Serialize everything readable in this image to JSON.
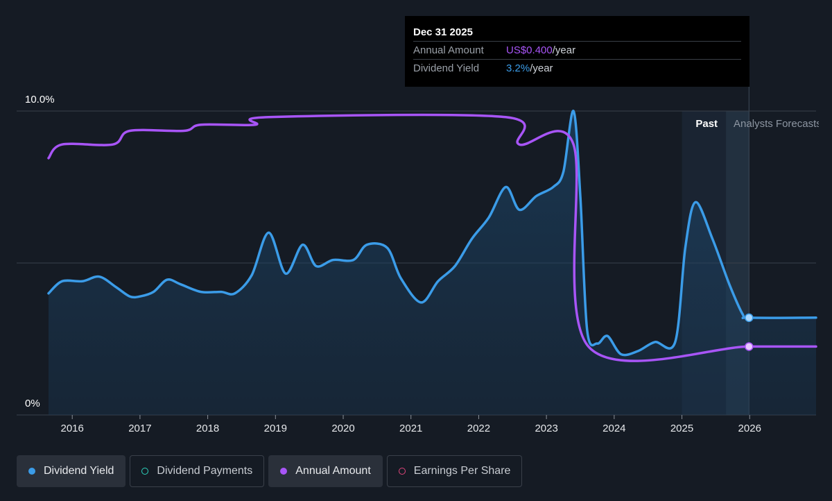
{
  "colors": {
    "background": "#151b24",
    "yield": "#3b9ce8",
    "annual": "#a855f7",
    "payments": "#2dd4bf",
    "eps": "#e0457b"
  },
  "tooltip": {
    "date": "Dec 31 2025",
    "rows": [
      {
        "key": "Annual Amount",
        "value_colored": "US$0.400",
        "suffix": "/year"
      },
      {
        "key": "Dividend Yield",
        "value_colored": "3.2%",
        "suffix": "/year"
      }
    ]
  },
  "regions": {
    "past_label": "Past",
    "forecast_label": "Analysts Forecasts"
  },
  "legend": [
    {
      "label": "Dividend Yield",
      "active": true,
      "icon": "filled-dot-icon",
      "color": "#3b9ce8"
    },
    {
      "label": "Dividend Payments",
      "active": false,
      "icon": "hollow-dot-icon",
      "color": "#2dd4bf"
    },
    {
      "label": "Annual Amount",
      "active": true,
      "icon": "filled-dot-icon",
      "color": "#a855f7"
    },
    {
      "label": "Earnings Per Share",
      "active": false,
      "icon": "hollow-dot-icon",
      "color": "#e0457b"
    }
  ],
  "chart_data": {
    "type": "line",
    "y_tick_labels": [
      "10.0%",
      "0%"
    ],
    "ylim": [
      0,
      10
    ],
    "xlim": [
      2015.65,
      2026.98
    ],
    "x_tick_labels": [
      "2016",
      "2017",
      "2018",
      "2019",
      "2020",
      "2021",
      "2022",
      "2023",
      "2024",
      "2025",
      "2026"
    ],
    "x_ticks": [
      2016,
      2017,
      2018,
      2019,
      2020,
      2021,
      2022,
      2023,
      2024,
      2025,
      2026
    ],
    "past_start": 2025.0,
    "forecast_start": 2025.65,
    "marker_x": 2025.99,
    "series": [
      {
        "name": "Dividend Yield",
        "unit": "%",
        "area": true,
        "points": [
          [
            2015.65,
            4.0
          ],
          [
            2015.85,
            4.4
          ],
          [
            2016.15,
            4.4
          ],
          [
            2016.4,
            4.55
          ],
          [
            2016.65,
            4.2
          ],
          [
            2016.85,
            3.9
          ],
          [
            2017.0,
            3.9
          ],
          [
            2017.2,
            4.05
          ],
          [
            2017.4,
            4.45
          ],
          [
            2017.6,
            4.3
          ],
          [
            2017.9,
            4.05
          ],
          [
            2018.2,
            4.05
          ],
          [
            2018.4,
            4.0
          ],
          [
            2018.65,
            4.6
          ],
          [
            2018.9,
            6.0
          ],
          [
            2019.15,
            4.65
          ],
          [
            2019.4,
            5.6
          ],
          [
            2019.6,
            4.9
          ],
          [
            2019.85,
            5.1
          ],
          [
            2020.15,
            5.1
          ],
          [
            2020.35,
            5.6
          ],
          [
            2020.65,
            5.5
          ],
          [
            2020.85,
            4.5
          ],
          [
            2021.15,
            3.7
          ],
          [
            2021.4,
            4.4
          ],
          [
            2021.65,
            4.9
          ],
          [
            2021.9,
            5.8
          ],
          [
            2022.15,
            6.5
          ],
          [
            2022.4,
            7.5
          ],
          [
            2022.6,
            6.75
          ],
          [
            2022.85,
            7.2
          ],
          [
            2023.1,
            7.5
          ],
          [
            2023.25,
            8.0
          ],
          [
            2023.4,
            10.0
          ],
          [
            2023.5,
            7.2
          ],
          [
            2023.6,
            2.8
          ],
          [
            2023.75,
            2.35
          ],
          [
            2023.9,
            2.6
          ],
          [
            2024.1,
            2.0
          ],
          [
            2024.35,
            2.1
          ],
          [
            2024.6,
            2.4
          ],
          [
            2024.9,
            2.4
          ],
          [
            2025.05,
            5.5
          ],
          [
            2025.2,
            7.0
          ],
          [
            2025.45,
            5.8
          ],
          [
            2025.7,
            4.3
          ],
          [
            2025.9,
            3.3
          ],
          [
            2025.99,
            3.2
          ],
          [
            2026.98,
            3.2
          ]
        ]
      },
      {
        "name": "Annual Amount",
        "unit": "US$",
        "area": false,
        "points": [
          [
            2015.65,
            8.45
          ],
          [
            2015.85,
            8.9
          ],
          [
            2016.6,
            8.9
          ],
          [
            2016.85,
            9.35
          ],
          [
            2017.65,
            9.35
          ],
          [
            2017.9,
            9.55
          ],
          [
            2018.7,
            9.55
          ],
          [
            2018.9,
            9.8
          ],
          [
            2022.4,
            9.8
          ],
          [
            2022.6,
            8.9
          ],
          [
            2023.4,
            8.9
          ],
          [
            2023.62,
            2.25
          ],
          [
            2025.99,
            2.25
          ],
          [
            2026.98,
            2.25
          ]
        ]
      }
    ]
  }
}
